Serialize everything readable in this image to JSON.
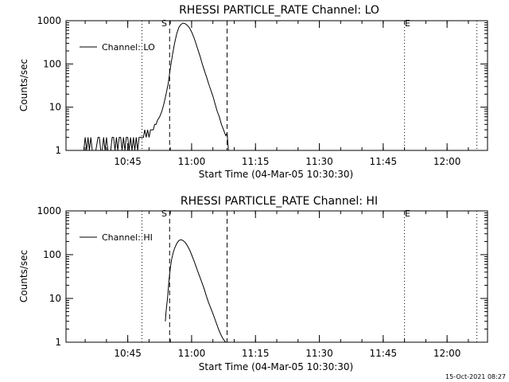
{
  "footer_timestamp": "15-Oct-2021 08:27",
  "chart_data": [
    {
      "type": "line",
      "title": "RHESSI PARTICLE_RATE Channel: LO",
      "xlabel": "Start Time (04-Mar-05 10:30:30)",
      "ylabel": "Counts/sec",
      "yscale": "log",
      "ylim": [
        1,
        1000
      ],
      "xlim": [
        "10:30:30",
        "12:09:30"
      ],
      "xticks": [
        "10:45",
        "11:00",
        "11:15",
        "11:30",
        "11:45",
        "12:00"
      ],
      "yticks": [
        "1",
        "10",
        "100",
        "1000"
      ],
      "legend": {
        "entry": "Channel: LO",
        "placement": "top-left"
      },
      "markers": {
        "start": {
          "label": "S",
          "time": "10:54:50"
        },
        "end": {
          "label": "E",
          "time": "11:50:00"
        },
        "dashed_lines": [
          "10:54:50",
          "11:08:20"
        ],
        "dotted_lines": [
          "10:48:20",
          "11:50:00",
          "12:07:00"
        ]
      },
      "series": [
        {
          "name": "Channel: LO",
          "x": [
            "10:34:40",
            "10:35:00",
            "10:35:20",
            "10:35:40",
            "10:36:00",
            "10:36:20",
            "10:36:40",
            "10:37:00",
            "10:37:30",
            "10:38:00",
            "10:38:20",
            "10:38:40",
            "10:39:00",
            "10:39:20",
            "10:39:40",
            "10:40:00",
            "10:40:20",
            "10:40:40",
            "10:41:00",
            "10:41:20",
            "10:41:40",
            "10:42:00",
            "10:42:20",
            "10:42:40",
            "10:43:00",
            "10:43:20",
            "10:43:40",
            "10:44:00",
            "10:44:20",
            "10:44:40",
            "10:45:00",
            "10:45:20",
            "10:45:40",
            "10:46:00",
            "10:46:20",
            "10:46:40",
            "10:47:00",
            "10:47:20",
            "10:47:40",
            "10:48:00",
            "10:48:20",
            "10:48:40",
            "10:49:00",
            "10:49:20",
            "10:49:40",
            "10:50:00",
            "10:50:20",
            "10:50:40",
            "10:51:00",
            "10:51:20",
            "10:51:40",
            "10:52:00",
            "10:52:30",
            "10:53:00",
            "10:53:30",
            "10:54:00",
            "10:54:30",
            "10:55:00",
            "10:55:30",
            "10:56:00",
            "10:56:30",
            "10:57:00",
            "10:57:30",
            "10:58:00",
            "10:58:30",
            "10:59:00",
            "10:59:30",
            "11:00:00",
            "11:00:30",
            "11:01:00",
            "11:01:30",
            "11:02:00",
            "11:02:30",
            "11:03:00",
            "11:03:30",
            "11:04:00",
            "11:04:30",
            "11:05:00",
            "11:05:30",
            "11:06:00",
            "11:06:30",
            "11:07:00",
            "11:07:30",
            "11:08:00",
            "11:08:20",
            "11:08:30",
            "11:08:40"
          ],
          "y": [
            1,
            2,
            1,
            2,
            1,
            2,
            1,
            1,
            1,
            2,
            2,
            1,
            1,
            2,
            1,
            2,
            1,
            1,
            1,
            2,
            2,
            1,
            2,
            1,
            2,
            2,
            1,
            2,
            1,
            2,
            2,
            1,
            2,
            1,
            2,
            1,
            2,
            1,
            2,
            2,
            2,
            2,
            3,
            2,
            3,
            2,
            3,
            3,
            3,
            4,
            4,
            5,
            6,
            8,
            12,
            20,
            35,
            80,
            160,
            300,
            500,
            700,
            820,
            880,
            850,
            780,
            680,
            550,
            420,
            300,
            210,
            150,
            100,
            70,
            50,
            35,
            25,
            18,
            12,
            8,
            6,
            4,
            3,
            2.2,
            2.5,
            1.6,
            1
          ]
        }
      ]
    },
    {
      "type": "line",
      "title": "RHESSI PARTICLE_RATE Channel: HI",
      "xlabel": "Start Time (04-Mar-05 10:30:30)",
      "ylabel": "Counts/sec",
      "yscale": "log",
      "ylim": [
        1,
        1000
      ],
      "xlim": [
        "10:30:30",
        "12:09:30"
      ],
      "xticks": [
        "10:45",
        "11:00",
        "11:15",
        "11:30",
        "11:45",
        "12:00"
      ],
      "yticks": [
        "1",
        "10",
        "100",
        "1000"
      ],
      "legend": {
        "entry": "Channel: HI",
        "placement": "top-left"
      },
      "markers": {
        "start": {
          "label": "S",
          "time": "10:54:50"
        },
        "end": {
          "label": "E",
          "time": "11:50:00"
        },
        "dashed_lines": [
          "10:54:50",
          "11:08:20"
        ],
        "dotted_lines": [
          "10:48:20",
          "11:50:00",
          "12:07:00"
        ]
      },
      "series": [
        {
          "name": "Channel: HI",
          "x": [
            "10:53:50",
            "10:54:00",
            "10:54:20",
            "10:54:40",
            "10:55:00",
            "10:55:20",
            "10:55:40",
            "10:56:00",
            "10:56:30",
            "10:57:00",
            "10:57:30",
            "10:58:00",
            "10:58:30",
            "10:59:00",
            "10:59:30",
            "11:00:00",
            "11:00:30",
            "11:01:00",
            "11:01:30",
            "11:02:00",
            "11:02:30",
            "11:03:00",
            "11:03:30",
            "11:04:00",
            "11:04:30",
            "11:05:00",
            "11:05:30",
            "11:06:00",
            "11:06:30",
            "11:07:00",
            "11:07:30",
            "11:08:00"
          ],
          "y": [
            3,
            5,
            10,
            25,
            50,
            80,
            110,
            140,
            180,
            210,
            220,
            210,
            190,
            160,
            130,
            100,
            75,
            55,
            40,
            30,
            22,
            16,
            11,
            8,
            6,
            4.5,
            3.3,
            2.4,
            1.8,
            1.4,
            1.15,
            1
          ]
        }
      ]
    }
  ]
}
